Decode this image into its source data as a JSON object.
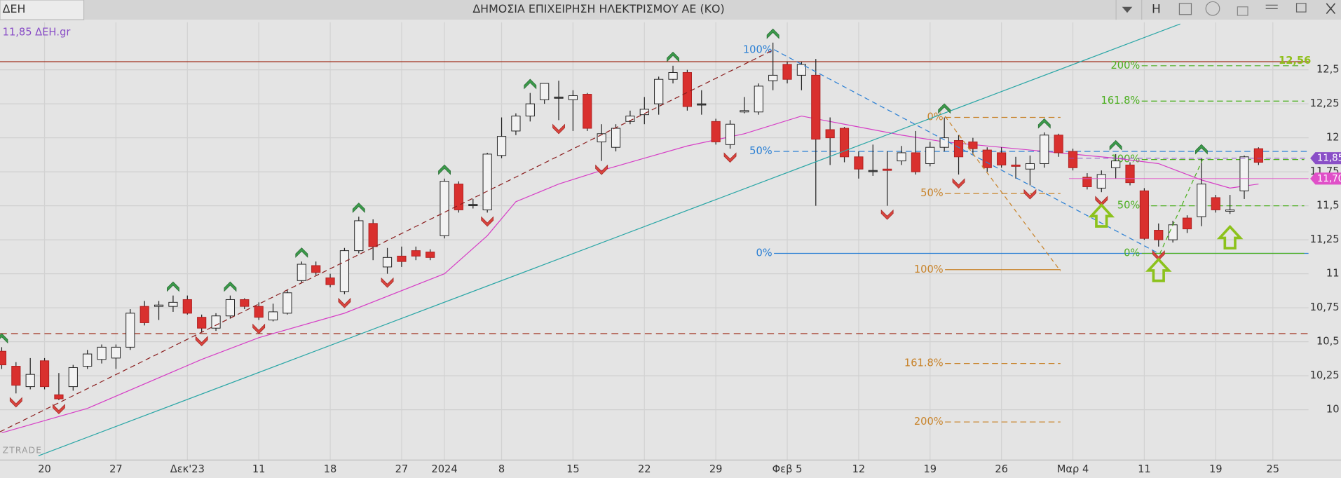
{
  "chart_data": {
    "type": "candlestick",
    "symbol": "ΔΕΗ",
    "title": "ΔΗΜΟΣΙΑ ΕΠΙΧΕΙΡΗΣΗ ΗΛΕΚΤΡΙΣΜΟΥ ΑΕ (ΚΟ)",
    "header_button": "H",
    "quote_label": "11,85 ΔΕΗ.gr",
    "watermark": "ZTRADE",
    "categories": [
      null,
      null,
      null,
      "20",
      null,
      null,
      null,
      null,
      "27",
      null,
      null,
      null,
      null,
      "Δεκ'23",
      null,
      null,
      null,
      null,
      "11",
      null,
      null,
      null,
      null,
      "18",
      null,
      null,
      null,
      null,
      "27",
      null,
      null,
      "2024",
      null,
      null,
      null,
      "8",
      null,
      null,
      null,
      null,
      "15",
      null,
      null,
      null,
      null,
      "22",
      null,
      null,
      null,
      null,
      "29",
      null,
      null,
      null,
      null,
      "Φεβ 5",
      null,
      null,
      null,
      null,
      "12",
      null,
      null,
      null,
      null,
      "19",
      null,
      null,
      null,
      null,
      "26",
      null,
      null,
      null,
      null,
      "Μαρ 4",
      null,
      null,
      null,
      null,
      "11",
      null,
      null,
      null,
      null,
      "19",
      null,
      null,
      null,
      "25"
    ],
    "open": [
      10.43,
      10.32,
      10.17,
      10.36,
      10.11,
      10.17,
      10.32,
      10.37,
      10.38,
      10.46,
      10.76,
      10.76,
      10.76,
      10.81,
      10.68,
      10.6,
      10.69,
      10.81,
      10.76,
      10.66,
      10.71,
      10.95,
      11.06,
      10.97,
      10.87,
      11.17,
      11.37,
      11.05,
      11.13,
      11.17,
      11.16,
      11.28,
      11.66,
      11.51,
      11.47,
      11.87,
      12.05,
      12.16,
      12.28,
      12.3,
      12.28,
      12.32,
      11.97,
      11.93,
      12.12,
      12.17,
      12.25,
      12.43,
      12.48,
      12.25,
      12.12,
      11.95,
      12.19,
      12.19,
      12.42,
      12.54,
      12.46,
      12.46,
      12.06,
      12.07,
      11.86,
      11.76,
      11.77,
      11.83,
      11.89,
      11.81,
      11.93,
      11.98,
      11.97,
      11.91,
      11.89,
      11.8,
      11.77,
      11.81,
      12.02,
      11.9,
      11.71,
      11.63,
      11.78,
      11.8,
      11.61,
      11.32,
      11.25,
      11.41,
      11.42,
      11.56,
      11.46,
      11.61,
      11.92,
      null
    ],
    "high": [
      10.46,
      10.35,
      10.38,
      10.38,
      10.27,
      10.33,
      10.44,
      10.48,
      10.48,
      10.74,
      10.8,
      10.8,
      10.84,
      10.84,
      10.7,
      10.71,
      10.84,
      10.82,
      10.79,
      10.78,
      10.88,
      11.09,
      11.09,
      11.0,
      11.19,
      11.42,
      11.4,
      11.19,
      11.2,
      11.2,
      11.18,
      11.7,
      11.68,
      11.55,
      11.89,
      12.15,
      12.18,
      12.33,
      12.4,
      12.42,
      12.35,
      12.33,
      12.1,
      12.1,
      12.2,
      12.3,
      12.45,
      12.53,
      12.5,
      12.35,
      12.14,
      12.13,
      12.3,
      12.4,
      12.7,
      12.56,
      12.56,
      12.58,
      12.15,
      12.08,
      11.9,
      11.95,
      11.9,
      11.94,
      12.05,
      11.97,
      12.15,
      12.02,
      12.0,
      11.93,
      11.93,
      11.86,
      11.87,
      12.04,
      12.03,
      11.92,
      11.74,
      11.76,
      11.88,
      11.82,
      11.63,
      11.37,
      11.39,
      11.43,
      11.85,
      11.58,
      11.58,
      11.87,
      11.93,
      null
    ],
    "low": [
      10.3,
      10.12,
      10.15,
      10.15,
      10.07,
      10.14,
      10.3,
      10.34,
      10.3,
      10.44,
      10.62,
      10.66,
      10.72,
      10.7,
      10.57,
      10.58,
      10.67,
      10.74,
      10.66,
      10.65,
      10.7,
      10.93,
      10.99,
      10.9,
      10.85,
      11.15,
      11.1,
      11.0,
      11.05,
      11.1,
      11.1,
      11.26,
      11.45,
      11.48,
      11.45,
      11.85,
      12.02,
      12.12,
      12.25,
      12.13,
      12.05,
      12.05,
      11.83,
      11.9,
      12.1,
      12.1,
      12.17,
      12.4,
      12.2,
      12.17,
      11.95,
      11.92,
      12.18,
      12.17,
      12.35,
      12.4,
      12.35,
      11.5,
      11.8,
      11.82,
      11.7,
      11.72,
      11.5,
      11.8,
      11.73,
      11.79,
      11.9,
      11.73,
      11.88,
      11.75,
      11.78,
      11.7,
      11.65,
      11.78,
      11.86,
      11.76,
      11.62,
      11.6,
      11.7,
      11.65,
      11.25,
      11.2,
      11.23,
      11.3,
      11.35,
      11.45,
      11.44,
      11.55,
      11.8,
      null
    ],
    "close": [
      10.33,
      10.18,
      10.26,
      10.17,
      10.08,
      10.31,
      10.41,
      10.46,
      10.46,
      10.71,
      10.64,
      10.77,
      10.79,
      10.71,
      10.6,
      10.69,
      10.81,
      10.76,
      10.68,
      10.72,
      10.86,
      11.07,
      11.01,
      10.92,
      11.17,
      11.39,
      11.2,
      11.12,
      11.09,
      11.13,
      11.12,
      11.68,
      11.47,
      11.51,
      11.88,
      12.01,
      12.16,
      12.25,
      12.4,
      12.3,
      12.31,
      12.07,
      12.03,
      12.07,
      12.16,
      12.21,
      12.43,
      12.48,
      12.23,
      12.25,
      11.97,
      12.1,
      12.2,
      12.38,
      12.46,
      12.43,
      12.54,
      11.99,
      12.0,
      11.86,
      11.77,
      11.76,
      11.76,
      11.89,
      11.75,
      11.93,
      12.0,
      11.86,
      11.92,
      11.78,
      11.8,
      11.79,
      11.81,
      12.02,
      11.89,
      11.78,
      11.64,
      11.73,
      11.83,
      11.67,
      11.26,
      11.25,
      11.36,
      11.33,
      11.66,
      11.47,
      11.47,
      11.86,
      11.82,
      null
    ],
    "colors": {
      "up": "#f2f2f2",
      "down": "#d9302e",
      "flat": "#555555"
    },
    "ylim": [
      9.63,
      12.85
    ],
    "yticks": [
      {
        "value": 10,
        "label": "10"
      },
      {
        "value": 10.25,
        "label": "10,25"
      },
      {
        "value": 10.5,
        "label": "10,5"
      },
      {
        "value": 10.75,
        "label": "10,75"
      },
      11,
      {
        "value": 11.25,
        "label": "11,25"
      },
      {
        "value": 11.5,
        "label": "11,5"
      },
      {
        "value": 11.75,
        "label": "11,75"
      },
      12,
      {
        "value": 12.25,
        "label": "12,25"
      },
      {
        "value": 12.5,
        "label": "12,5"
      }
    ],
    "grid": true,
    "moving_average": {
      "color": "#d63fc6",
      "x": [
        0,
        6,
        14,
        18,
        24,
        31,
        34,
        36,
        39,
        42,
        45,
        48,
        52,
        56,
        60,
        63,
        66,
        72,
        78,
        81,
        84,
        86,
        88
      ],
      "values": [
        9.83,
        10.01,
        10.37,
        10.53,
        10.71,
        11.0,
        11.28,
        11.53,
        11.66,
        11.76,
        11.85,
        11.94,
        12.03,
        12.16,
        12.08,
        12.02,
        11.97,
        11.91,
        11.85,
        11.81,
        11.69,
        11.63,
        11.66
      ]
    },
    "resistance": {
      "value": 12.56,
      "label": "12,56",
      "color": "#a0301e",
      "label_color": "#8fbf1a"
    },
    "support": {
      "value": 10.56,
      "color": "#a0301e"
    },
    "price_tags": [
      {
        "value": 11.85,
        "label": "11,85",
        "color": "#8a4fc7"
      },
      {
        "value": 11.7,
        "label": "11,70",
        "color": "#e050c8"
      }
    ],
    "fibonacci": [
      {
        "color": "#2a7fd4",
        "levels": [
          {
            "value": 12.645,
            "label": "100%"
          },
          {
            "value": 11.9,
            "label": "50%"
          },
          {
            "value": 11.15,
            "label": "0%"
          }
        ]
      },
      {
        "color": "#c8832a",
        "levels": [
          {
            "value": 12.15,
            "label": "0%"
          },
          {
            "value": 11.59,
            "label": "50%"
          },
          {
            "value": 11.03,
            "label": "100%"
          },
          {
            "value": 10.34,
            "label": "161.8%"
          },
          {
            "value": 9.91,
            "label": "200%"
          }
        ]
      },
      {
        "color": "#4caf20",
        "levels": [
          {
            "value": 12.53,
            "label": "200%"
          },
          {
            "value": 12.27,
            "label": "161.8%"
          },
          {
            "value": 11.84,
            "label": "100%"
          },
          {
            "value": 11.5,
            "label": "50%"
          },
          {
            "value": 11.15,
            "label": "0%"
          }
        ]
      }
    ],
    "up_signals": [
      0,
      12,
      16,
      21,
      25,
      31,
      37,
      47,
      54,
      66,
      73,
      78,
      84
    ],
    "down_signals": [
      1,
      4,
      14,
      18,
      24,
      27,
      34,
      39,
      42,
      51,
      62,
      67,
      72,
      77,
      81
    ],
    "buy_arrows": [
      77,
      81,
      86
    ]
  }
}
